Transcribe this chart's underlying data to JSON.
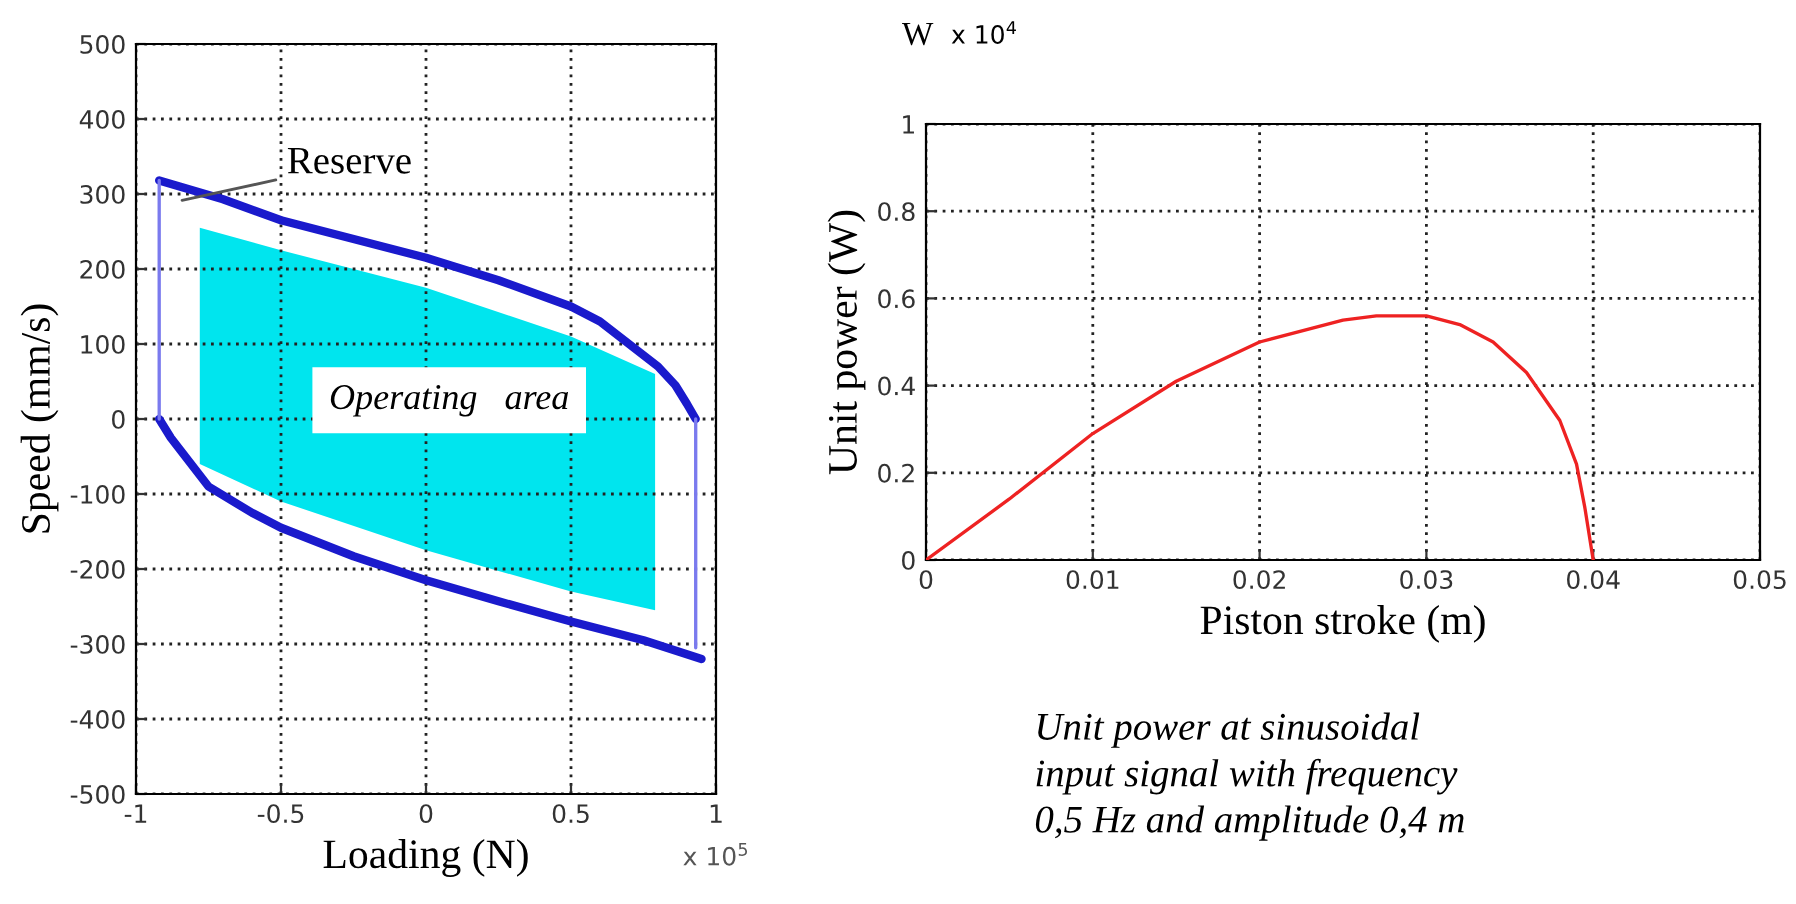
{
  "chart_data": [
    {
      "type": "line",
      "xlabel": "Loading (N)",
      "ylabel": "Speed (mm/s)",
      "xlim": [
        -1,
        1
      ],
      "ylim": [
        -500,
        500
      ],
      "xticks": [
        -1,
        -0.5,
        0,
        0.5,
        1
      ],
      "yticks": [
        -500,
        -400,
        -300,
        -200,
        -100,
        0,
        100,
        200,
        300,
        400,
        500
      ],
      "grid": true,
      "series": [
        {
          "type": "area",
          "color": "#00e5ee",
          "x": [
            -0.78,
            -0.5,
            0,
            0.5,
            0.79,
            0.79,
            0.5,
            0,
            -0.5,
            -0.78,
            -0.78
          ],
          "values": [
            255,
            225,
            175,
            110,
            60,
            -255,
            -230,
            -175,
            -110,
            -60,
            255
          ]
        },
        {
          "type": "line",
          "color": "#1a1acc",
          "x": [
            -0.92,
            -0.7,
            -0.5,
            -0.25,
            0,
            0.25,
            0.5,
            0.6,
            0.7,
            0.8,
            0.86,
            0.9,
            0.93
          ],
          "values": [
            318,
            293,
            265,
            240,
            215,
            185,
            150,
            130,
            100,
            70,
            45,
            20,
            0
          ]
        },
        {
          "type": "line",
          "color": "#7a7aee",
          "x": [
            0.93,
            0.93
          ],
          "values": [
            0,
            -305
          ]
        },
        {
          "type": "line",
          "color": "#1a1acc",
          "x": [
            -0.92,
            -0.88,
            -0.85,
            -0.8,
            -0.75,
            -0.6,
            -0.5,
            -0.25,
            0,
            0.25,
            0.5,
            0.75,
            0.95
          ],
          "values": [
            0,
            -25,
            -40,
            -65,
            -90,
            -125,
            -145,
            -183,
            -215,
            -243,
            -270,
            -295,
            -320
          ]
        },
        {
          "type": "line",
          "color": "#7a7aee",
          "x": [
            -0.92,
            -0.92
          ],
          "values": [
            0,
            318
          ]
        }
      ],
      "annotations": [
        "Reserve",
        "Operating   area",
        "x 10$^{5}$"
      ]
    },
    {
      "type": "line",
      "xlabel": "Piston stroke (m)",
      "ylabel": "Unit power (W)",
      "xlim": [
        0,
        0.05
      ],
      "ylim": [
        0,
        1
      ],
      "xticks": [
        0,
        0.01,
        0.02,
        0.03,
        0.04,
        0.05
      ],
      "yticks": [
        0,
        0.2,
        0.4,
        0.6,
        0.8,
        1
      ],
      "grid": true,
      "series": [
        {
          "color": "#ee2222",
          "x": [
            0,
            0.005,
            0.01,
            0.015,
            0.02,
            0.025,
            0.027,
            0.03,
            0.032,
            0.034,
            0.036,
            0.038,
            0.039,
            0.0395,
            0.04
          ],
          "values": [
            0,
            0.14,
            0.29,
            0.41,
            0.5,
            0.55,
            0.56,
            0.56,
            0.54,
            0.5,
            0.43,
            0.32,
            0.22,
            0.12,
            0
          ]
        }
      ],
      "annotations": [
        "W",
        "x 10$^{4}$",
        "Unit power at sinusoidal\ninput signal with frequency\n0,5 Hz and amplitude 0,4 m"
      ]
    }
  ]
}
